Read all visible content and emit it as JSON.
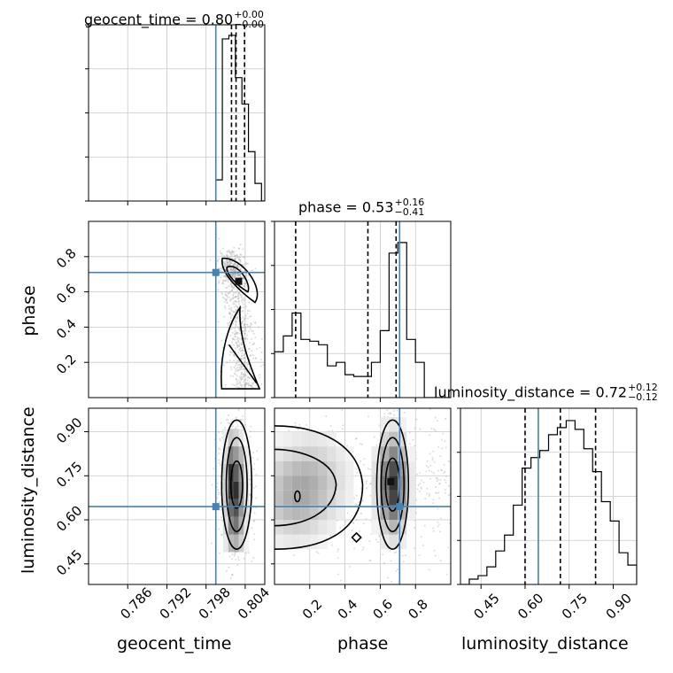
{
  "colors": {
    "truth": "#4682b4",
    "line": "#000000",
    "grid": "#c8c8c8",
    "scatter": "#9a9a9a"
  },
  "titles": [
    {
      "name": "geocent_time",
      "sep": "=",
      "value": "0.80",
      "sup": "+0.00",
      "sub": "−0.00"
    },
    {
      "name": "phase",
      "sep": "=",
      "value": "0.53",
      "sup": "+0.16",
      "sub": "−0.41"
    },
    {
      "name": "luminosity_distance",
      "sep": "=",
      "value": "0.72",
      "sup": "+0.12",
      "sub": "−0.12"
    }
  ],
  "axis_labels": {
    "x": [
      "geocent_time",
      "phase",
      "luminosity_distance"
    ],
    "y": [
      "phase",
      "luminosity_distance"
    ]
  },
  "ticks": {
    "geocent_time": [
      "0.786",
      "0.792",
      "0.798",
      "0.804"
    ],
    "phase": [
      "0.2",
      "0.4",
      "0.6",
      "0.8"
    ],
    "luminosity_distance": [
      "0.45",
      "0.60",
      "0.75",
      "0.90"
    ]
  },
  "chart_data": {
    "type": "corner",
    "parameters": [
      "geocent_time",
      "phase",
      "luminosity_distance"
    ],
    "ranges": {
      "geocent_time": [
        0.78,
        0.807
      ],
      "phase": [
        0.0,
        1.0
      ],
      "luminosity_distance": [
        0.38,
        0.98
      ]
    },
    "truths": {
      "geocent_time": 0.7995,
      "phase": 0.71,
      "luminosity_distance": 0.645
    },
    "quantiles": {
      "geocent_time": [
        0.8019,
        0.8026,
        0.8039
      ],
      "phase": [
        0.12,
        0.53,
        0.69
      ],
      "luminosity_distance": [
        0.6,
        0.72,
        0.84
      ]
    },
    "histograms": {
      "geocent_time": {
        "edges": [
          0.7995,
          0.8005,
          0.8015,
          0.8025,
          0.8035,
          0.8045,
          0.8055,
          0.8065,
          0.807
        ],
        "values": [
          0.12,
          0.92,
          0.94,
          0.7,
          0.55,
          0.28,
          0.1,
          0.0
        ]
      },
      "phase": {
        "edges": [
          0.0,
          0.05,
          0.1,
          0.15,
          0.2,
          0.25,
          0.3,
          0.35,
          0.4,
          0.45,
          0.5,
          0.55,
          0.6,
          0.65,
          0.7,
          0.75,
          0.8,
          0.85,
          0.9,
          0.95,
          1.0
        ],
        "values": [
          0.26,
          0.35,
          0.48,
          0.33,
          0.32,
          0.3,
          0.18,
          0.2,
          0.13,
          0.12,
          0.12,
          0.2,
          0.38,
          0.82,
          0.88,
          0.33,
          0.2,
          0.0,
          0.0,
          0.0
        ]
      },
      "luminosity_distance": {
        "edges": [
          0.38,
          0.41,
          0.44,
          0.47,
          0.5,
          0.53,
          0.56,
          0.59,
          0.62,
          0.65,
          0.68,
          0.71,
          0.74,
          0.77,
          0.8,
          0.83,
          0.86,
          0.89,
          0.92,
          0.95,
          0.98
        ],
        "values": [
          0.0,
          0.03,
          0.05,
          0.1,
          0.19,
          0.28,
          0.45,
          0.66,
          0.72,
          0.76,
          0.85,
          0.89,
          0.93,
          0.88,
          0.77,
          0.64,
          0.47,
          0.36,
          0.18,
          0.11
        ]
      }
    }
  }
}
